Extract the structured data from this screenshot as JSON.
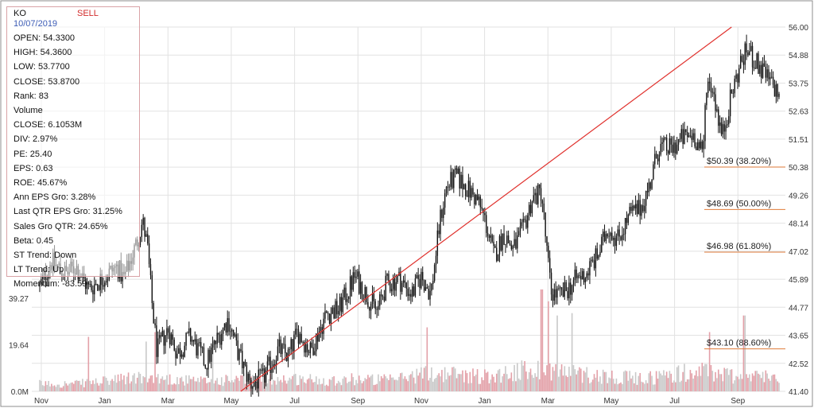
{
  "chart_data": {
    "type": "candlestick-with-volume",
    "ticker": "KO",
    "signal": "SELL",
    "date": "10/07/2019",
    "stats": [
      {
        "label": "OPEN",
        "value": "54.3300"
      },
      {
        "label": "HIGH",
        "value": "54.3600"
      },
      {
        "label": "LOW",
        "value": "53.7700"
      },
      {
        "label": "CLOSE",
        "value": "53.8700"
      },
      {
        "label": "Rank",
        "value": "83"
      },
      {
        "label": "Volume",
        "value": ""
      },
      {
        "label": "CLOSE",
        "value": "6.1053M"
      },
      {
        "label": "DIV",
        "value": "2.97%"
      },
      {
        "label": "PE",
        "value": "25.40"
      },
      {
        "label": "EPS",
        "value": "0.63"
      },
      {
        "label": "ROE",
        "value": "45.67%"
      },
      {
        "label": "Ann EPS Gro",
        "value": "3.28%"
      },
      {
        "label": "Last QTR EPS Gro",
        "value": "31.25%"
      },
      {
        "label": "Sales Gro QTR",
        "value": "24.65%"
      },
      {
        "label": "Beta",
        "value": "0.45"
      },
      {
        "label": "ST Trend",
        "value": "Down"
      },
      {
        "label": "LT Trend",
        "value": "Up"
      },
      {
        "label": "Momentum",
        "value": "-83.59"
      }
    ],
    "price_axis": {
      "ticks": [
        "56.00",
        "54.88",
        "53.75",
        "52.63",
        "51.51",
        "50.38",
        "49.26",
        "48.14",
        "47.02",
        "45.89",
        "44.77",
        "43.65",
        "42.52",
        "41.40"
      ],
      "range": [
        41.4,
        56.0
      ]
    },
    "volume_axis": {
      "ticks": [
        "39.27",
        "19.64",
        "0.0M"
      ],
      "range_millions": [
        0,
        39.27
      ]
    },
    "x_axis": {
      "ticks": [
        "Nov",
        "Jan",
        "Mar",
        "May",
        "Jul",
        "Sep",
        "Nov",
        "Jan",
        "Mar",
        "May",
        "Jul",
        "Sep"
      ],
      "month_index": [
        0,
        2,
        4,
        6,
        8,
        10,
        12,
        14,
        16,
        18,
        20,
        22
      ],
      "range_months": [
        -0.3,
        23.5
      ]
    },
    "fibonacci_levels": [
      {
        "label": "$50.39 (38.20%)",
        "price": 50.39
      },
      {
        "label": "$48.69 (50.00%)",
        "price": 48.69
      },
      {
        "label": "$46.98 (61.80%)",
        "price": 46.98
      },
      {
        "label": "$43.10 (88.60%)",
        "price": 43.1
      }
    ],
    "trendline": {
      "from": {
        "month": 6.3,
        "price": 41.4
      },
      "to": {
        "month": 21.8,
        "price": 56.0
      }
    },
    "price_anchors": [
      [
        -0.05,
        45.6
      ],
      [
        0.3,
        46.6
      ],
      [
        0.8,
        46.1
      ],
      [
        1.1,
        46.4
      ],
      [
        1.5,
        45.5
      ],
      [
        2.0,
        46.0
      ],
      [
        2.4,
        46.4
      ],
      [
        2.6,
        45.9
      ],
      [
        3.0,
        47.3
      ],
      [
        3.2,
        48.2
      ],
      [
        3.35,
        47.2
      ],
      [
        3.5,
        44.9
      ],
      [
        3.65,
        43.0
      ],
      [
        4.0,
        43.9
      ],
      [
        4.3,
        42.9
      ],
      [
        4.7,
        43.6
      ],
      [
        5.2,
        42.5
      ],
      [
        5.6,
        43.6
      ],
      [
        5.9,
        44.3
      ],
      [
        6.2,
        43.0
      ],
      [
        6.6,
        41.7
      ],
      [
        7.0,
        41.9
      ],
      [
        7.5,
        43.1
      ],
      [
        7.8,
        42.8
      ],
      [
        8.1,
        43.8
      ],
      [
        8.5,
        43.0
      ],
      [
        9.0,
        44.5
      ],
      [
        9.4,
        44.7
      ],
      [
        9.6,
        45.2
      ],
      [
        9.9,
        46.0
      ],
      [
        10.2,
        45.4
      ],
      [
        10.6,
        44.6
      ],
      [
        10.9,
        45.7
      ],
      [
        11.3,
        45.9
      ],
      [
        11.7,
        45.3
      ],
      [
        12.0,
        46.0
      ],
      [
        12.3,
        45.3
      ],
      [
        12.6,
        48.3
      ],
      [
        12.8,
        49.6
      ],
      [
        13.1,
        50.0
      ],
      [
        13.4,
        49.6
      ],
      [
        13.8,
        49.0
      ],
      [
        14.0,
        48.3
      ],
      [
        14.3,
        46.8
      ],
      [
        14.6,
        47.7
      ],
      [
        14.9,
        47.1
      ],
      [
        15.2,
        47.8
      ],
      [
        15.5,
        49.1
      ],
      [
        15.8,
        49.4
      ],
      [
        15.95,
        47.2
      ],
      [
        16.1,
        45.4
      ],
      [
        16.4,
        45.2
      ],
      [
        16.7,
        45.6
      ],
      [
        16.9,
        45.9
      ],
      [
        17.2,
        46.1
      ],
      [
        17.6,
        46.9
      ],
      [
        17.9,
        48.0
      ],
      [
        18.2,
        47.5
      ],
      [
        18.6,
        48.5
      ],
      [
        18.9,
        48.7
      ],
      [
        19.2,
        49.6
      ],
      [
        19.5,
        51.2
      ],
      [
        19.9,
        51.1
      ],
      [
        20.2,
        51.5
      ],
      [
        20.6,
        51.7
      ],
      [
        20.9,
        50.8
      ],
      [
        21.0,
        53.8
      ],
      [
        21.2,
        53.6
      ],
      [
        21.5,
        51.6
      ],
      [
        21.8,
        53.3
      ],
      [
        22.1,
        54.6
      ],
      [
        22.3,
        55.1
      ],
      [
        22.6,
        54.5
      ],
      [
        22.9,
        54.0
      ],
      [
        23.3,
        53.3
      ]
    ],
    "volume_profile_millions": [
      [
        0,
        3
      ],
      [
        1,
        3
      ],
      [
        2,
        4
      ],
      [
        3,
        5.5
      ],
      [
        4,
        5
      ],
      [
        5,
        4
      ],
      [
        6,
        4.5
      ],
      [
        7,
        5
      ],
      [
        8,
        5
      ],
      [
        9,
        4.5
      ],
      [
        10,
        5
      ],
      [
        11,
        4.5
      ],
      [
        12,
        7
      ],
      [
        13,
        7
      ],
      [
        14,
        6
      ],
      [
        15,
        8
      ],
      [
        16,
        9
      ],
      [
        17,
        7
      ],
      [
        18,
        6
      ],
      [
        19,
        5
      ],
      [
        20,
        7
      ],
      [
        21,
        8
      ],
      [
        22,
        6
      ],
      [
        23,
        6
      ]
    ],
    "volume_spikes": [
      [
        1.5,
        23
      ],
      [
        3.3,
        21
      ],
      [
        3.6,
        25
      ],
      [
        5.4,
        21
      ],
      [
        12.2,
        27
      ],
      [
        15.8,
        43
      ],
      [
        16.0,
        38
      ],
      [
        16.3,
        32
      ],
      [
        16.75,
        33
      ],
      [
        21.1,
        25
      ],
      [
        22.2,
        32
      ]
    ]
  }
}
